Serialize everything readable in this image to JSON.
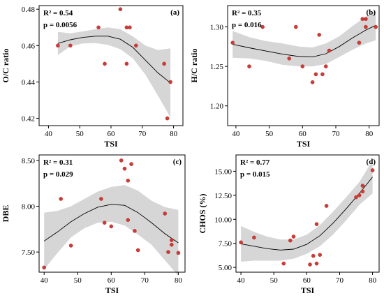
{
  "chart_data": [
    {
      "type": "scatter",
      "panel": "(a)",
      "xlabel": "TSI",
      "ylabel": "O/C ratio",
      "r2": "R² = 0.54",
      "p": "p = 0.0056",
      "xlim": [
        37,
        83
      ],
      "ylim": [
        0.416,
        0.482
      ],
      "xticks": [
        40,
        50,
        60,
        70,
        80
      ],
      "yticks": [
        0.42,
        0.44,
        0.46,
        0.48
      ],
      "ytick_labels": [
        "0.42",
        "0.44",
        "0.46",
        "0.48"
      ],
      "points": [
        [
          43,
          0.46
        ],
        [
          47,
          0.46
        ],
        [
          56,
          0.47
        ],
        [
          58,
          0.45
        ],
        [
          63,
          0.48
        ],
        [
          65,
          0.45
        ],
        [
          65,
          0.47
        ],
        [
          66,
          0.47
        ],
        [
          68,
          0.46
        ],
        [
          77,
          0.45
        ],
        [
          78,
          0.42
        ],
        [
          79,
          0.44
        ]
      ],
      "fit": [
        [
          43,
          0.4612
        ],
        [
          47,
          0.4632
        ],
        [
          51,
          0.4645
        ],
        [
          55,
          0.4652
        ],
        [
          59,
          0.4652
        ],
        [
          63,
          0.4635
        ],
        [
          67,
          0.459
        ],
        [
          71,
          0.452
        ],
        [
          75,
          0.445
        ],
        [
          79,
          0.4395
        ]
      ],
      "band_upper": [
        [
          43,
          0.4675
        ],
        [
          47,
          0.4668
        ],
        [
          51,
          0.4678
        ],
        [
          55,
          0.469
        ],
        [
          59,
          0.47
        ],
        [
          63,
          0.469
        ],
        [
          67,
          0.465
        ],
        [
          71,
          0.46
        ],
        [
          75,
          0.4575
        ],
        [
          79,
          0.4585
        ]
      ],
      "band_lower": [
        [
          43,
          0.4548
        ],
        [
          47,
          0.4596
        ],
        [
          51,
          0.4612
        ],
        [
          55,
          0.4614
        ],
        [
          59,
          0.4604
        ],
        [
          63,
          0.458
        ],
        [
          67,
          0.453
        ],
        [
          71,
          0.444
        ],
        [
          75,
          0.4325
        ],
        [
          79,
          0.4205
        ]
      ]
    },
    {
      "type": "scatter",
      "panel": "(b)",
      "xlabel": "TSI",
      "ylabel": "H/C ratio",
      "r2": "R² = 0.35",
      "p": "p = 0.016",
      "xlim": [
        37.5,
        83
      ],
      "ylim": [
        1.175,
        1.327
      ],
      "xticks": [
        40,
        50,
        60,
        70,
        80
      ],
      "yticks": [
        1.2,
        1.25,
        1.3
      ],
      "ytick_labels": [
        "1.20",
        "1.25",
        "1.30"
      ],
      "points": [
        [
          39,
          1.28
        ],
        [
          44,
          1.25
        ],
        [
          48,
          1.3
        ],
        [
          56,
          1.26
        ],
        [
          58,
          1.3
        ],
        [
          60,
          1.25
        ],
        [
          63,
          1.23
        ],
        [
          64,
          1.24
        ],
        [
          65,
          1.29
        ],
        [
          66,
          1.24
        ],
        [
          67,
          1.25
        ],
        [
          68,
          1.27
        ],
        [
          77,
          1.28
        ],
        [
          78,
          1.31
        ],
        [
          79,
          1.31
        ],
        [
          79,
          1.3
        ],
        [
          82,
          1.3
        ]
      ],
      "fit": [
        [
          39,
          1.278
        ],
        [
          44,
          1.2735
        ],
        [
          49,
          1.2695
        ],
        [
          54,
          1.2655
        ],
        [
          59,
          1.2625
        ],
        [
          63,
          1.262
        ],
        [
          67,
          1.266
        ],
        [
          71,
          1.275
        ],
        [
          75,
          1.286
        ],
        [
          79,
          1.296
        ],
        [
          82,
          1.302
        ]
      ],
      "band_upper": [
        [
          39,
          1.295
        ],
        [
          44,
          1.287
        ],
        [
          49,
          1.282
        ],
        [
          54,
          1.279
        ],
        [
          59,
          1.275
        ],
        [
          63,
          1.274
        ],
        [
          67,
          1.279
        ],
        [
          71,
          1.288
        ],
        [
          75,
          1.301
        ],
        [
          79,
          1.313
        ],
        [
          82,
          1.321
        ]
      ],
      "band_lower": [
        [
          39,
          1.261
        ],
        [
          44,
          1.26
        ],
        [
          49,
          1.257
        ],
        [
          54,
          1.252
        ],
        [
          59,
          1.25
        ],
        [
          63,
          1.25
        ],
        [
          67,
          1.253
        ],
        [
          71,
          1.262
        ],
        [
          75,
          1.271
        ],
        [
          79,
          1.279
        ],
        [
          82,
          1.283
        ]
      ]
    },
    {
      "type": "scatter",
      "panel": "(c)",
      "xlabel": "TSI",
      "ylabel": "DBE",
      "r2": "R² = 0.31",
      "p": "p = 0.029",
      "xlim": [
        38.5,
        82
      ],
      "ylim": [
        7.28,
        8.56
      ],
      "xticks": [
        40,
        50,
        60,
        70,
        80
      ],
      "yticks": [
        7.5,
        8.0,
        8.5
      ],
      "ytick_labels": [
        "7.50",
        "8.00",
        "8.50"
      ],
      "points": [
        [
          40,
          7.33
        ],
        [
          45,
          8.08
        ],
        [
          48,
          7.57
        ],
        [
          57,
          8.08
        ],
        [
          58,
          7.82
        ],
        [
          60,
          7.78
        ],
        [
          63,
          8.5
        ],
        [
          64,
          8.41
        ],
        [
          65,
          8.28
        ],
        [
          65,
          7.85
        ],
        [
          66,
          8.46
        ],
        [
          67,
          7.73
        ],
        [
          68,
          7.52
        ],
        [
          76,
          7.92
        ],
        [
          77,
          7.5
        ],
        [
          78,
          7.63
        ],
        [
          78,
          7.58
        ],
        [
          80,
          7.49
        ]
      ],
      "fit": [
        [
          40,
          7.62
        ],
        [
          44,
          7.72
        ],
        [
          48,
          7.83
        ],
        [
          52,
          7.92
        ],
        [
          56,
          7.99
        ],
        [
          60,
          8.02
        ],
        [
          64,
          8.01
        ],
        [
          68,
          7.93
        ],
        [
          72,
          7.82
        ],
        [
          76,
          7.7
        ],
        [
          80,
          7.6
        ]
      ],
      "band_upper": [
        [
          40,
          7.93
        ],
        [
          44,
          7.95
        ],
        [
          48,
          8.0
        ],
        [
          52,
          8.08
        ],
        [
          56,
          8.16
        ],
        [
          60,
          8.21
        ],
        [
          64,
          8.23
        ],
        [
          68,
          8.17
        ],
        [
          72,
          8.06
        ],
        [
          76,
          7.99
        ],
        [
          80,
          7.96
        ]
      ],
      "band_lower": [
        [
          40,
          7.31
        ],
        [
          44,
          7.49
        ],
        [
          48,
          7.66
        ],
        [
          52,
          7.76
        ],
        [
          56,
          7.82
        ],
        [
          60,
          7.83
        ],
        [
          64,
          7.79
        ],
        [
          68,
          7.69
        ],
        [
          72,
          7.58
        ],
        [
          76,
          7.41
        ],
        [
          80,
          7.24
        ]
      ]
    },
    {
      "type": "scatter",
      "panel": "(d)",
      "xlabel": "TSI",
      "ylabel": "CHOS (%)",
      "r2": "R² = 0.77",
      "p": "p = 0.015",
      "xlim": [
        38.5,
        82
      ],
      "ylim": [
        4.5,
        16.7
      ],
      "xticks": [
        40,
        50,
        60,
        70,
        80
      ],
      "yticks": [
        5.0,
        7.5,
        10.0,
        12.5,
        15.0
      ],
      "ytick_labels": [
        "5.00",
        "7.50",
        "10.00",
        "12.50",
        "15.00"
      ],
      "points": [
        [
          40,
          7.6
        ],
        [
          44,
          8.1
        ],
        [
          53,
          5.4
        ],
        [
          55,
          7.8
        ],
        [
          56,
          8.2
        ],
        [
          61,
          5.3
        ],
        [
          62,
          6.2
        ],
        [
          63,
          9.5
        ],
        [
          63,
          5.4
        ],
        [
          64,
          6.3
        ],
        [
          66,
          11.4
        ],
        [
          75,
          12.3
        ],
        [
          76,
          12.5
        ],
        [
          77,
          13.5
        ],
        [
          77,
          12.9
        ],
        [
          80,
          15.1
        ]
      ],
      "fit": [
        [
          40,
          7.45
        ],
        [
          44,
          7.2
        ],
        [
          48,
          6.95
        ],
        [
          52,
          6.8
        ],
        [
          56,
          6.9
        ],
        [
          60,
          7.4
        ],
        [
          64,
          8.3
        ],
        [
          68,
          9.6
        ],
        [
          72,
          11.1
        ],
        [
          76,
          12.7
        ],
        [
          80,
          14.4
        ]
      ],
      "band_upper": [
        [
          40,
          9.3
        ],
        [
          44,
          8.7
        ],
        [
          48,
          8.2
        ],
        [
          52,
          7.9
        ],
        [
          56,
          7.9
        ],
        [
          60,
          8.4
        ],
        [
          64,
          9.4
        ],
        [
          68,
          10.8
        ],
        [
          72,
          12.3
        ],
        [
          76,
          13.9
        ],
        [
          80,
          16.1
        ]
      ],
      "band_lower": [
        [
          40,
          5.6
        ],
        [
          44,
          5.7
        ],
        [
          48,
          5.7
        ],
        [
          52,
          5.7
        ],
        [
          56,
          5.9
        ],
        [
          60,
          6.4
        ],
        [
          64,
          7.2
        ],
        [
          68,
          8.4
        ],
        [
          72,
          9.9
        ],
        [
          76,
          11.5
        ],
        [
          80,
          12.7
        ]
      ]
    }
  ]
}
